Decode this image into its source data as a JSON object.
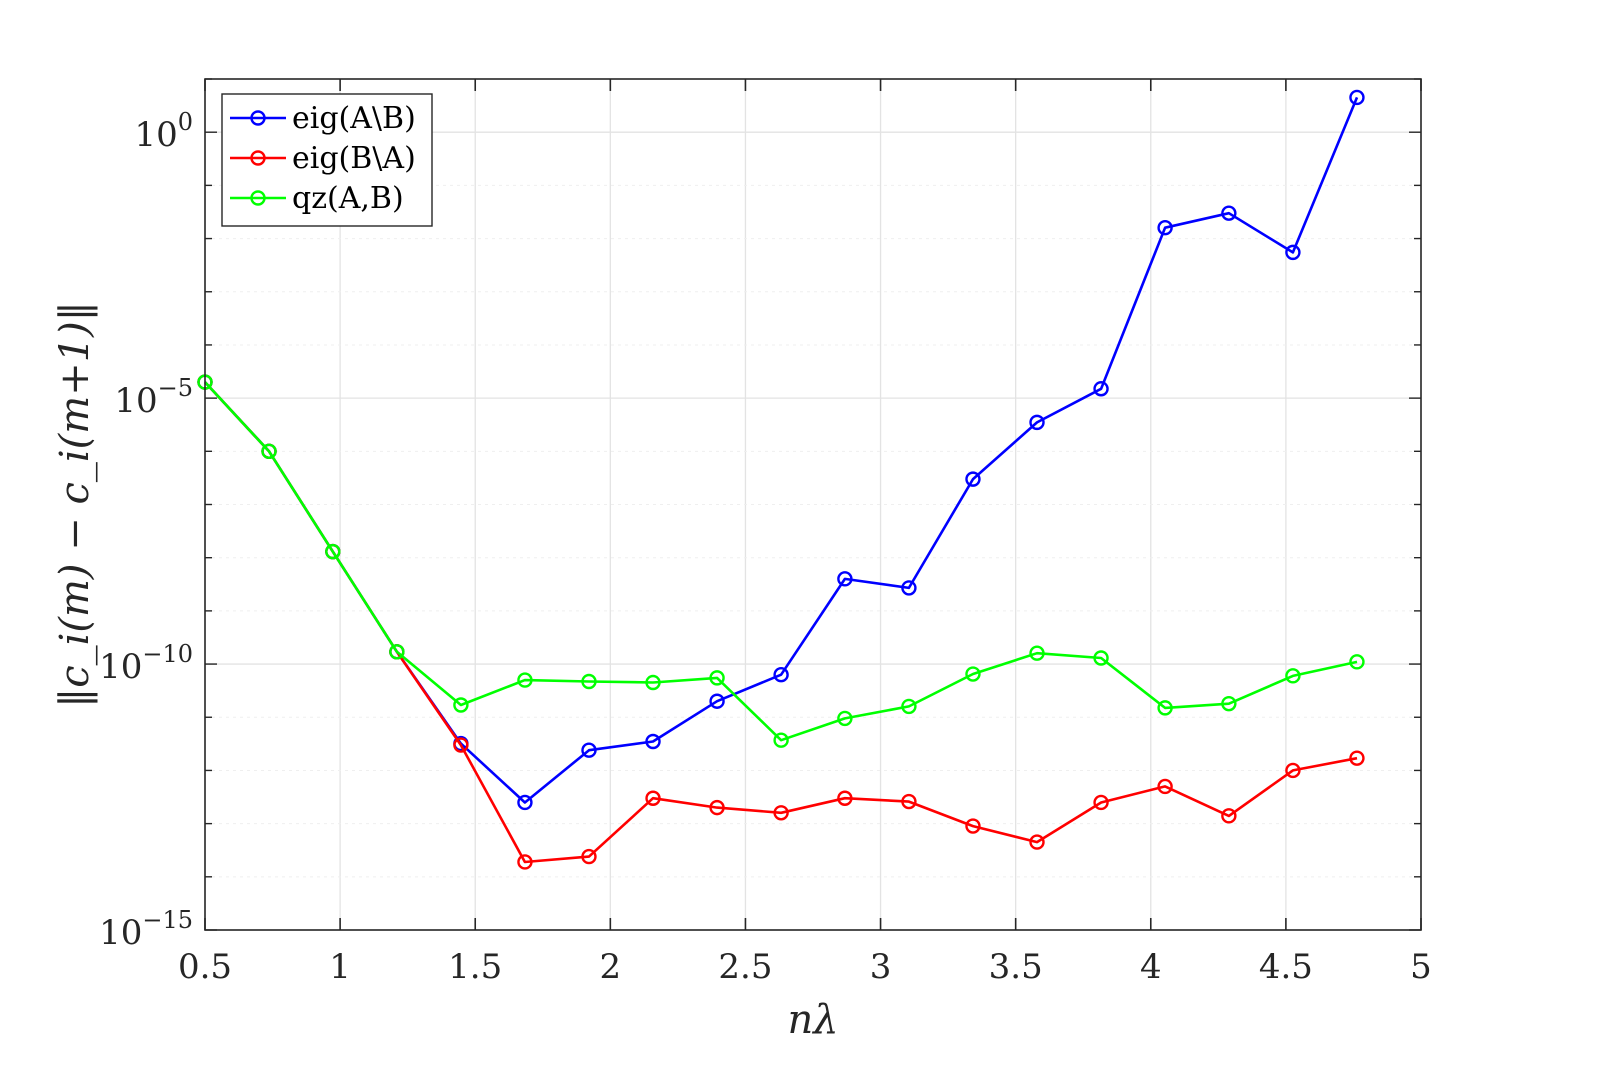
{
  "chart_data": {
    "type": "line",
    "title": "",
    "xlabel": "nλ",
    "ylabel": "‖c_i(m) − c_i(m+1)‖",
    "y_scale": "log",
    "xlim": [
      0.5,
      5
    ],
    "ylim": [
      1e-15,
      10
    ],
    "grid": true,
    "minor_grid": true,
    "legend_position": "top-left",
    "x_ticks": [
      0.5,
      1,
      1.5,
      2,
      2.5,
      3,
      3.5,
      4,
      4.5,
      5
    ],
    "x_tick_labels": [
      "0.5",
      "1",
      "1.5",
      "2",
      "2.5",
      "3",
      "3.5",
      "4",
      "4.5",
      "5"
    ],
    "y_ticks": [
      {
        "value": 1,
        "mantissa": "10",
        "exponent": "0"
      },
      {
        "value": 1e-05,
        "mantissa": "10",
        "exponent": "−5"
      },
      {
        "value": 1e-10,
        "mantissa": "10",
        "exponent": "−10"
      },
      {
        "value": 1e-15,
        "mantissa": "10",
        "exponent": "−15"
      }
    ],
    "x": [
      0.5,
      0.737,
      0.973,
      1.21,
      1.447,
      1.684,
      1.921,
      2.158,
      2.395,
      2.632,
      2.868,
      3.105,
      3.342,
      3.579,
      3.816,
      4.053,
      4.289,
      4.526,
      4.763
    ],
    "series": [
      {
        "name": "eig(A\\B)",
        "color": "#0000ff",
        "values": [
          2e-05,
          1e-06,
          1.3e-08,
          1.7e-10,
          3.2e-12,
          2.5e-13,
          2.4e-12,
          3.5e-12,
          2e-11,
          6.3e-11,
          4e-09,
          2.7e-09,
          3e-07,
          3.5e-06,
          1.5e-05,
          0.016,
          0.03,
          0.0055,
          4.5
        ]
      },
      {
        "name": "eig(B\\A)",
        "color": "#ff0000",
        "values": [
          2e-05,
          1e-06,
          1.3e-08,
          1.7e-10,
          3e-12,
          1.9e-14,
          2.4e-14,
          3e-13,
          2e-13,
          1.6e-13,
          3e-13,
          2.6e-13,
          9e-14,
          4.5e-14,
          2.5e-13,
          5e-13,
          1.4e-13,
          1e-12,
          1.7e-12
        ]
      },
      {
        "name": "qz(A,B)",
        "color": "#00ff00",
        "values": [
          2e-05,
          1e-06,
          1.3e-08,
          1.7e-10,
          1.7e-11,
          5e-11,
          4.7e-11,
          4.5e-11,
          5.5e-11,
          3.7e-12,
          9.5e-12,
          1.6e-11,
          6.5e-11,
          1.6e-10,
          1.3e-10,
          1.5e-11,
          1.8e-11,
          6e-11,
          1.1e-10
        ]
      }
    ]
  }
}
